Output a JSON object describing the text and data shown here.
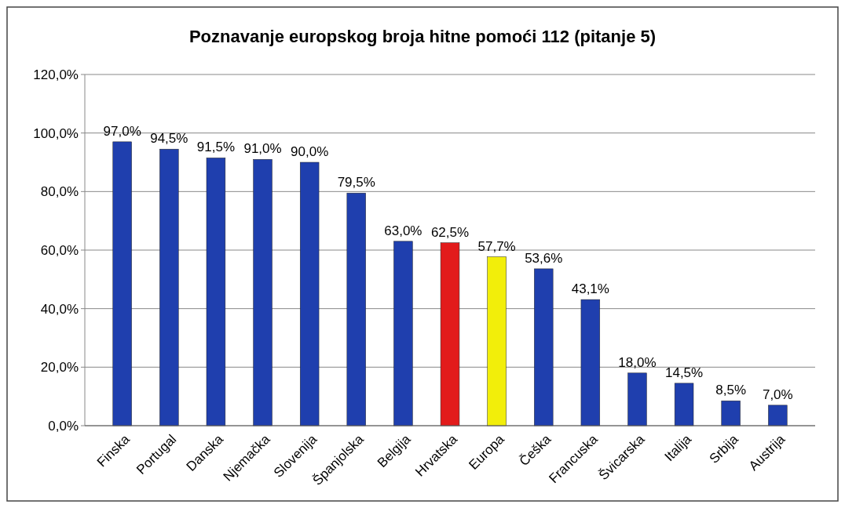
{
  "chart_data": {
    "type": "bar",
    "title": "Poznavanje europskog broja hitne pomoći 112 (pitanje 5)",
    "categories": [
      "Finska",
      "Portugal",
      "Danska",
      "Njemačka",
      "Slovenija",
      "Španjolska",
      "Belgija",
      "Hrvatska",
      "Europa",
      "Češka",
      "Francuska",
      "Švicarska",
      "Italija",
      "Srbija",
      "Austrija"
    ],
    "values": [
      97.0,
      94.5,
      91.5,
      91.0,
      90.0,
      79.5,
      63.0,
      62.5,
      57.7,
      53.6,
      43.1,
      18.0,
      14.5,
      8.5,
      7.0
    ],
    "colors": [
      "#1f3fae",
      "#1f3fae",
      "#1f3fae",
      "#1f3fae",
      "#1f3fae",
      "#1f3fae",
      "#1f3fae",
      "#e21b1b",
      "#f2ee0a",
      "#1f3fae",
      "#1f3fae",
      "#1f3fae",
      "#1f3fae",
      "#1f3fae",
      "#1f3fae"
    ],
    "value_labels": [
      "97,0%",
      "94,5%",
      "91,5%",
      "91,0%",
      "90,0%",
      "79,5%",
      "63,0%",
      "62,5%",
      "57,7%",
      "53,6%",
      "43,1%",
      "18,0%",
      "14,5%",
      "8,5%",
      "7,0%"
    ],
    "ylim": [
      0,
      120
    ],
    "yticks": [
      {
        "value": 0,
        "label": "0,0%"
      },
      {
        "value": 20,
        "label": "20,0%"
      },
      {
        "value": 40,
        "label": "40,0%"
      },
      {
        "value": 60,
        "label": "60,0%"
      },
      {
        "value": 80,
        "label": "80,0%"
      },
      {
        "value": 100,
        "label": "100,0%"
      },
      {
        "value": 120,
        "label": "120,0%"
      }
    ],
    "grid": "y"
  }
}
